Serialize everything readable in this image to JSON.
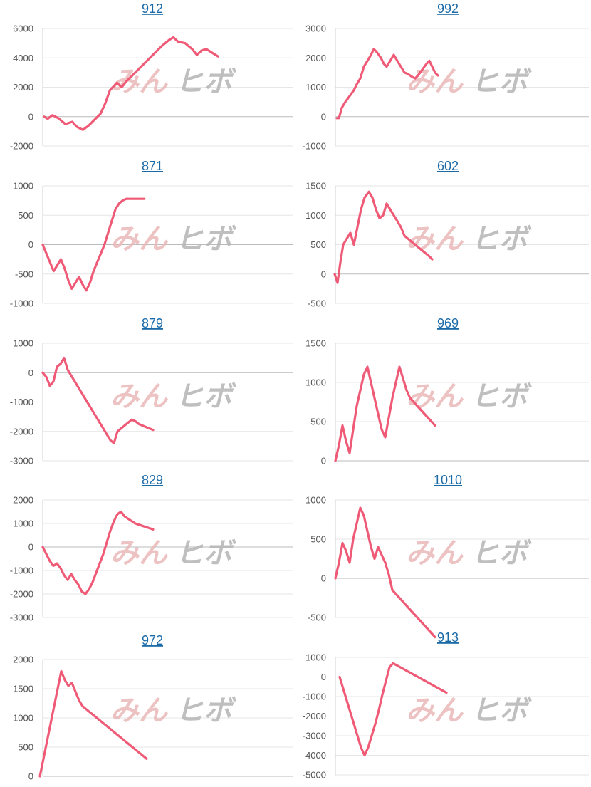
{
  "colors": {
    "line": "#ef5a77",
    "title": "#1a6aa8",
    "wm_pink": "#eab8b8",
    "wm_gray": "#b5b5b5"
  },
  "watermark": {
    "left": "みん",
    "right": "ヒボ"
  },
  "chart_data": [
    {
      "type": "line",
      "title": "912",
      "ylim": [
        -2000,
        6000
      ],
      "yticks": [
        -2000,
        0,
        2000,
        4000,
        6000
      ],
      "x": [
        0,
        3,
        7,
        12,
        18,
        24,
        28,
        33,
        38,
        43,
        48,
        52,
        56,
        62,
        66,
        70,
        75,
        80,
        85,
        90,
        95,
        100,
        106,
        110,
        114,
        120,
        126,
        130,
        134,
        138,
        144,
        148
      ],
      "values": [
        0,
        -150,
        100,
        -100,
        -500,
        -350,
        -700,
        -900,
        -600,
        -200,
        200,
        900,
        1800,
        2300,
        2000,
        2400,
        2800,
        3200,
        3600,
        4000,
        4400,
        4800,
        5200,
        5400,
        5100,
        5000,
        4600,
        4200,
        4500,
        4600,
        4300,
        4100
      ]
    },
    {
      "type": "line",
      "title": "992",
      "ylim": [
        -1000,
        3000
      ],
      "yticks": [
        -1000,
        0,
        1000,
        2000,
        3000
      ],
      "x": [
        0,
        3,
        7,
        12,
        18,
        24,
        28,
        33,
        38,
        43,
        48,
        52,
        56,
        62,
        66,
        70,
        75,
        80,
        85,
        90,
        95,
        100,
        106,
        110,
        114,
        120,
        126,
        130,
        134,
        138,
        142
      ],
      "values": [
        -50,
        -50,
        300,
        500,
        700,
        900,
        1100,
        1300,
        1700,
        1900,
        2100,
        2300,
        2200,
        2000,
        1800,
        1700,
        1900,
        2100,
        1900,
        1700,
        1500,
        1450,
        1350,
        1300,
        1400,
        1600,
        1800,
        1900,
        1700,
        1500,
        1400
      ]
    },
    {
      "type": "line",
      "title": "871",
      "ylim": [
        -1000,
        1000
      ],
      "yticks": [
        -1000,
        -500,
        0,
        500,
        1000
      ],
      "x": [
        0,
        5,
        10,
        15,
        20,
        25,
        30,
        35,
        40,
        45,
        50,
        55,
        60,
        65,
        70,
        75,
        80,
        85,
        90,
        95,
        100,
        105,
        110,
        115,
        120,
        125,
        130,
        135,
        140
      ],
      "values": [
        0,
        -150,
        -300,
        -450,
        -350,
        -250,
        -400,
        -600,
        -750,
        -650,
        -550,
        -680,
        -780,
        -650,
        -450,
        -300,
        -150,
        0,
        200,
        400,
        600,
        700,
        750,
        780,
        780,
        780,
        780,
        780,
        780
      ]
    },
    {
      "type": "line",
      "title": "602",
      "ylim": [
        -500,
        1500
      ],
      "yticks": [
        -500,
        0,
        500,
        1000,
        1500
      ],
      "x": [
        0,
        4,
        8,
        12,
        17,
        22,
        27,
        32,
        37,
        42,
        48,
        53,
        58,
        63,
        68,
        73,
        78,
        83,
        88,
        93,
        98,
        103,
        108,
        113,
        118,
        123,
        128,
        133,
        137
      ],
      "values": [
        0,
        -150,
        200,
        500,
        600,
        700,
        500,
        800,
        1100,
        1300,
        1400,
        1300,
        1100,
        950,
        1000,
        1200,
        1100,
        1000,
        900,
        800,
        650,
        600,
        550,
        500,
        450,
        400,
        350,
        300,
        250
      ]
    },
    {
      "type": "line",
      "title": "879",
      "ylim": [
        -3000,
        1000
      ],
      "yticks": [
        -3000,
        -2000,
        -1000,
        0,
        1000
      ],
      "x": [
        0,
        5,
        10,
        15,
        20,
        25,
        30,
        35,
        40,
        45,
        50,
        55,
        60,
        65,
        70,
        75,
        80,
        85,
        90,
        95,
        100,
        105,
        110,
        115,
        120,
        125,
        130,
        135,
        140,
        145,
        150,
        155
      ],
      "values": [
        0,
        -150,
        -450,
        -300,
        200,
        300,
        500,
        100,
        -100,
        -300,
        -500,
        -700,
        -900,
        -1100,
        -1300,
        -1500,
        -1700,
        -1900,
        -2100,
        -2300,
        -2400,
        -2000,
        -1900,
        -1800,
        -1700,
        -1600,
        -1650,
        -1750,
        -1800,
        -1850,
        -1900,
        -1950
      ]
    },
    {
      "type": "line",
      "title": "969",
      "ylim": [
        0,
        1500
      ],
      "yticks": [
        0,
        500,
        1000,
        1500
      ],
      "x": [
        0,
        5,
        10,
        15,
        20,
        25,
        30,
        35,
        40,
        45,
        50,
        55,
        60,
        65,
        70,
        75,
        80,
        85,
        90,
        95,
        100,
        105,
        110,
        115,
        120,
        125,
        130,
        135,
        140
      ],
      "values": [
        0,
        200,
        450,
        250,
        100,
        400,
        700,
        900,
        1100,
        1200,
        1000,
        800,
        600,
        400,
        300,
        550,
        800,
        1000,
        1200,
        1050,
        900,
        800,
        750,
        700,
        650,
        600,
        550,
        500,
        450
      ]
    },
    {
      "type": "line",
      "title": "829",
      "ylim": [
        -3000,
        2000
      ],
      "yticks": [
        -3000,
        -2000,
        -1000,
        0,
        1000,
        2000
      ],
      "x": [
        0,
        5,
        10,
        15,
        20,
        25,
        30,
        35,
        40,
        45,
        50,
        55,
        60,
        65,
        70,
        75,
        80,
        85,
        90,
        95,
        100,
        105,
        110,
        115,
        120,
        125,
        130,
        135,
        140,
        145,
        150,
        155
      ],
      "values": [
        0,
        -300,
        -600,
        -800,
        -700,
        -900,
        -1200,
        -1400,
        -1150,
        -1400,
        -1600,
        -1900,
        -2000,
        -1800,
        -1500,
        -1100,
        -700,
        -300,
        200,
        700,
        1100,
        1400,
        1500,
        1300,
        1200,
        1100,
        1000,
        950,
        900,
        850,
        800,
        750
      ]
    },
    {
      "type": "line",
      "title": "1010",
      "ylim": [
        -500,
        1000
      ],
      "yticks": [
        -500,
        0,
        500,
        1000
      ],
      "x": [
        0,
        5,
        10,
        15,
        20,
        25,
        30,
        35,
        40,
        45,
        50,
        55,
        60,
        65,
        70,
        75,
        80,
        85,
        90,
        95,
        100,
        105,
        110,
        115,
        120,
        125,
        130,
        135,
        140
      ],
      "values": [
        0,
        200,
        450,
        350,
        200,
        500,
        700,
        900,
        800,
        600,
        400,
        250,
        400,
        300,
        200,
        50,
        -150,
        -200,
        -250,
        -300,
        -350,
        -400,
        -450,
        -500,
        -550,
        -600,
        -650,
        -700,
        -750
      ]
    },
    {
      "type": "line",
      "title": "972",
      "ylim": [
        0,
        2000
      ],
      "yticks": [
        0,
        500,
        1000,
        1500,
        2000
      ],
      "x": [
        0,
        5,
        10,
        15,
        20,
        25,
        30,
        35,
        40,
        45,
        50,
        55,
        60,
        65,
        70,
        75,
        80,
        85,
        90,
        95,
        100,
        105,
        110,
        115,
        120,
        125,
        130,
        135,
        140,
        145,
        150
      ],
      "values": [
        0,
        300,
        600,
        900,
        1200,
        1500,
        1800,
        1650,
        1550,
        1600,
        1450,
        1300,
        1200,
        1150,
        1100,
        1050,
        1000,
        950,
        900,
        850,
        800,
        750,
        700,
        650,
        600,
        550,
        500,
        450,
        400,
        350,
        300
      ]
    },
    {
      "type": "line",
      "title": "913",
      "ylim": [
        -5000,
        1000
      ],
      "yticks": [
        -5000,
        -4000,
        -3000,
        -2000,
        -1000,
        0,
        1000
      ],
      "x": [
        0,
        5,
        10,
        15,
        20,
        25,
        30,
        35,
        40,
        45,
        50,
        55,
        60,
        65,
        70,
        75,
        80,
        85,
        90,
        95,
        100,
        105,
        110,
        115,
        120,
        125,
        130,
        135,
        140,
        145,
        150
      ],
      "values": [
        0,
        -600,
        -1200,
        -1800,
        -2400,
        -3000,
        -3600,
        -4000,
        -3600,
        -3000,
        -2400,
        -1700,
        -900,
        -200,
        500,
        700,
        600,
        500,
        400,
        300,
        200,
        100,
        0,
        -100,
        -200,
        -300,
        -400,
        -500,
        -600,
        -700,
        -800
      ]
    }
  ]
}
